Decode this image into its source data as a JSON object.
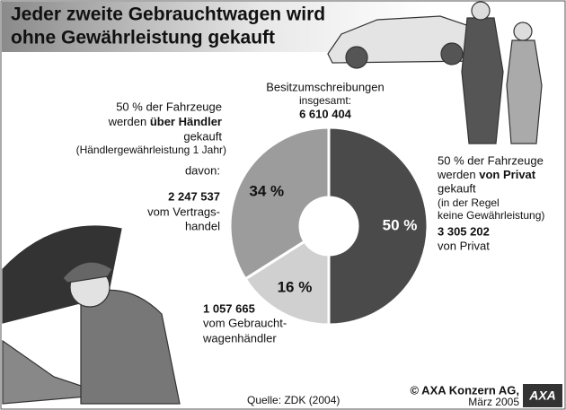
{
  "title": [
    "Jeder zweite Gebrauchtwagen wird",
    "ohne Gewährleistung gekauft"
  ],
  "chart_data": {
    "type": "pie",
    "values": [
      50,
      16,
      34
    ],
    "value_labels": [
      "50 %",
      "16 %",
      "34 %"
    ],
    "colors": [
      "#4a4a4a",
      "#d0d0d0",
      "#9c9c9c"
    ],
    "donut": true
  },
  "center": [
    "Besitzumschreibungen",
    "insgesamt:",
    "6 610 404"
  ],
  "dealer": [
    "50 % der Fahrzeuge",
    "werden ",
    "über Händler",
    "gekauft",
    "(Händlergewährleistung 1 Jahr)",
    "davon:"
  ],
  "contract": [
    "2 247 537",
    "vom Vertrags-",
    "handel"
  ],
  "used": [
    "1 057 665",
    "vom Gebraucht-",
    "wagenhändler"
  ],
  "private": [
    "50 % der Fahrzeuge",
    "werden ",
    "von Privat",
    "gekauft",
    "(in der Regel",
    "keine Gewährleistung)",
    "3 305 202",
    "von Privat"
  ],
  "source": "Quelle: ZDK (2004)",
  "copyright": [
    "© AXA Konzern AG,",
    "März 2005"
  ],
  "logo": "AXA"
}
